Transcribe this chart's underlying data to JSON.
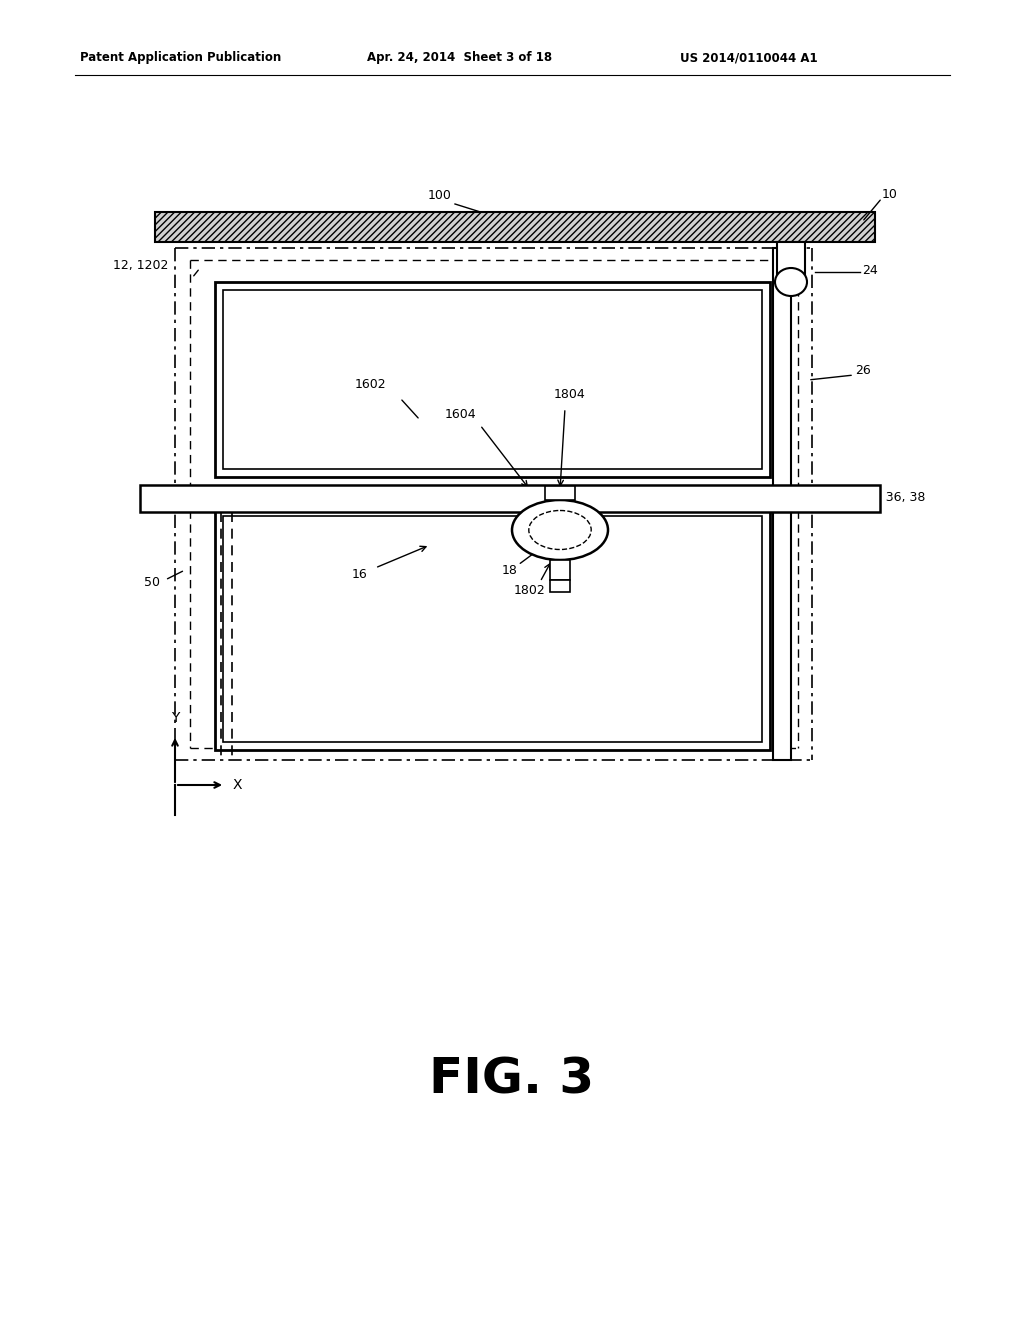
{
  "bg_color": "#ffffff",
  "header_left": "Patent Application Publication",
  "header_mid": "Apr. 24, 2014  Sheet 3 of 18",
  "header_right": "US 2014/0110044 A1",
  "fig_label": "FIG. 3"
}
